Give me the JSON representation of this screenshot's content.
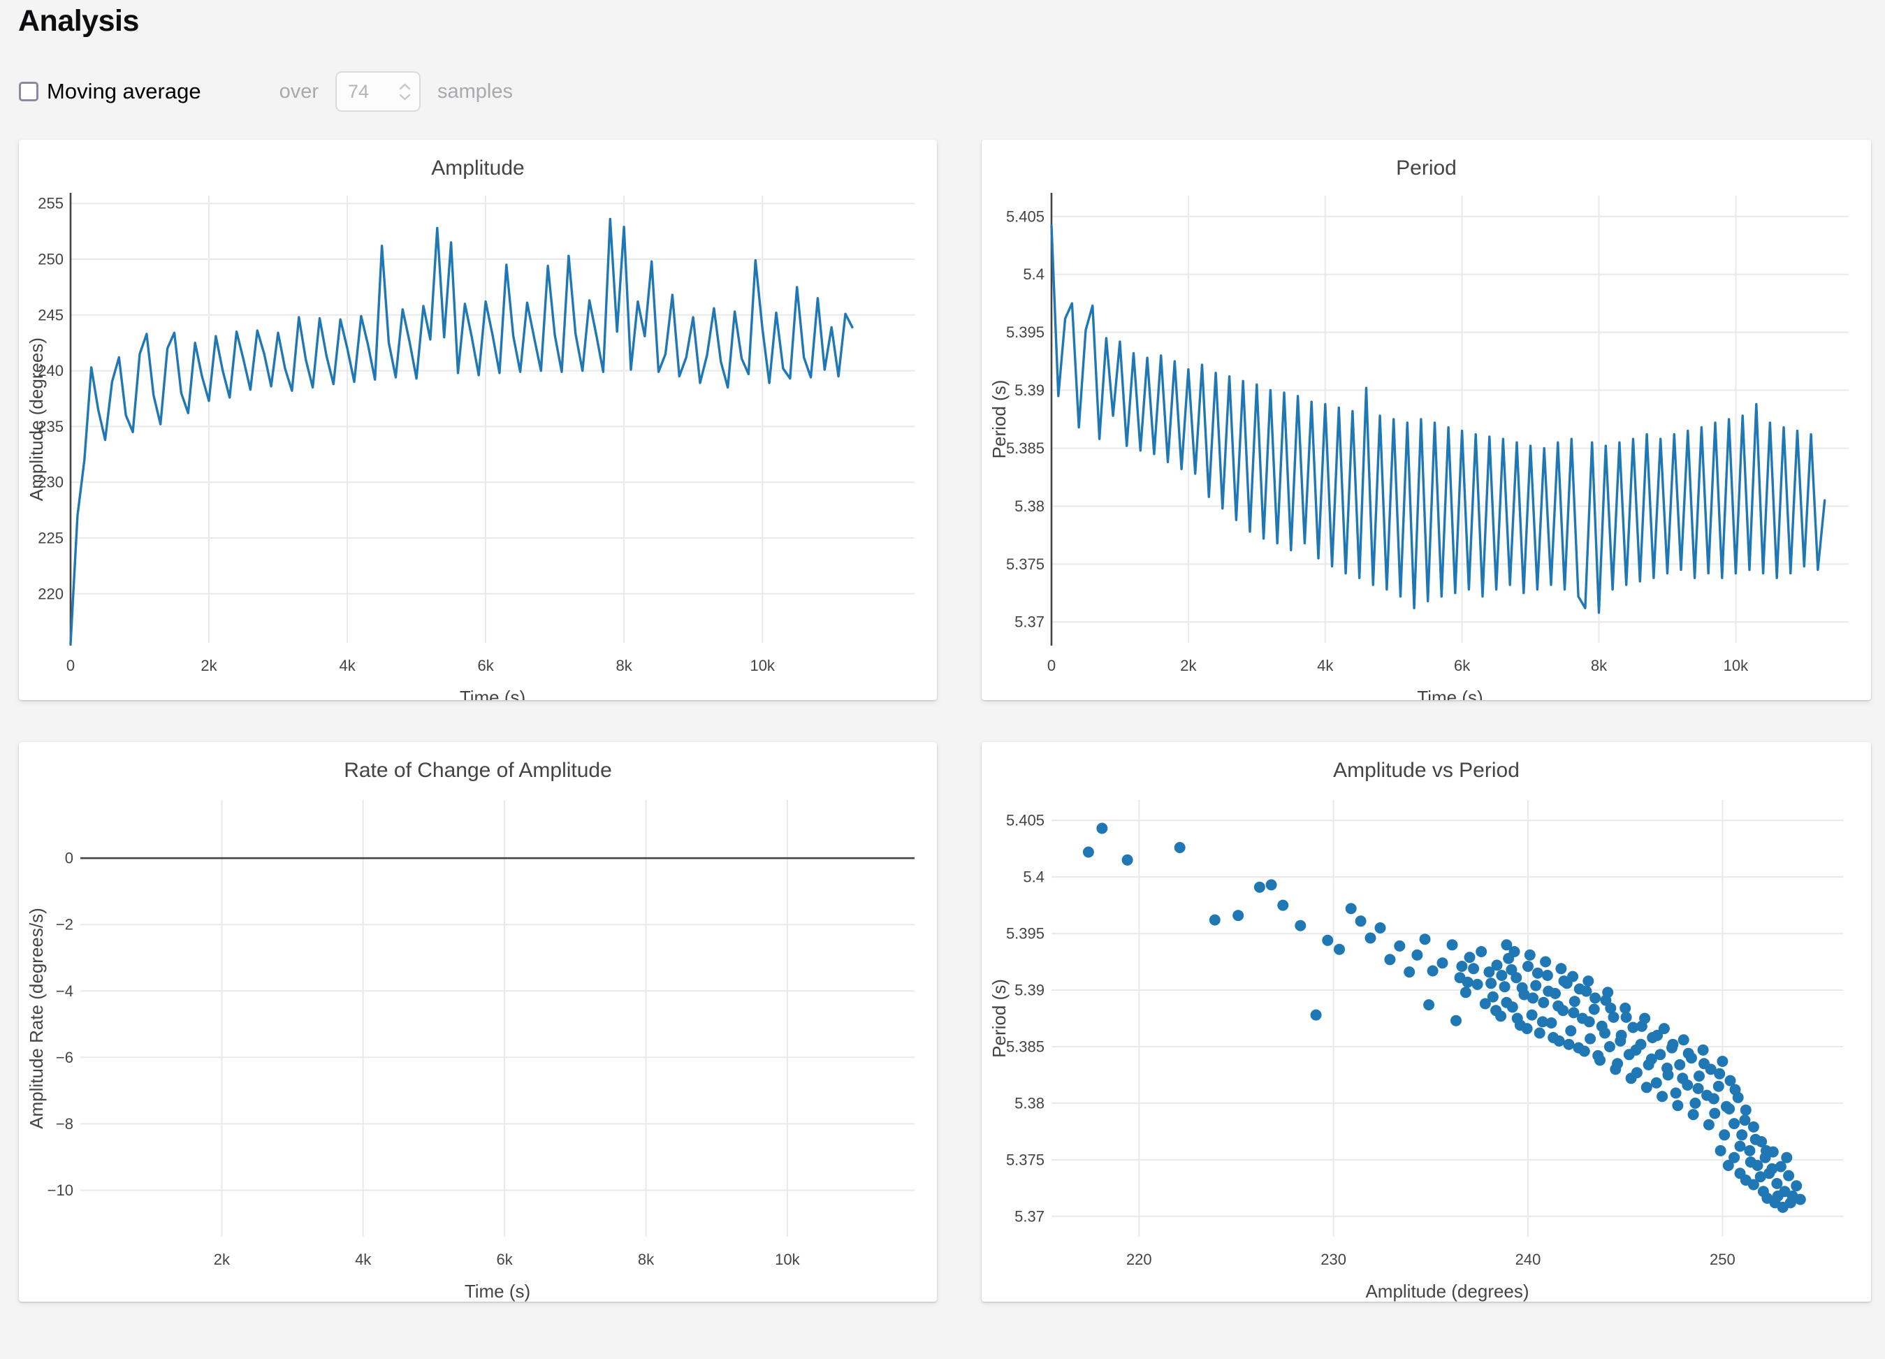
{
  "page": {
    "title": "Analysis"
  },
  "controls": {
    "moving_average_label": "Moving average",
    "checkbox_checked": false,
    "over_label": "over",
    "samples_value": "74",
    "samples_label": "samples",
    "disabled_text_color": "#a8a8ad"
  },
  "accent_color": "#1f77b4",
  "chart_data": [
    {
      "type": "line",
      "title": "Amplitude",
      "xlabel": "Time (s)",
      "ylabel": "Amplitude (degrees)",
      "line_color": "#1f77b4",
      "grid": true,
      "legend": "none",
      "xrange": [
        0,
        12200
      ],
      "yrange": [
        215.6,
        255.7
      ],
      "zeroline": "x",
      "xticks": [
        {
          "v": 0,
          "label": "0"
        },
        {
          "v": 2000,
          "label": "2k"
        },
        {
          "v": 4000,
          "label": "4k"
        },
        {
          "v": 6000,
          "label": "6k"
        },
        {
          "v": 8000,
          "label": "8k"
        },
        {
          "v": 10000,
          "label": "10k"
        }
      ],
      "yticks": [
        {
          "v": 220,
          "label": "220"
        },
        {
          "v": 225,
          "label": "225"
        },
        {
          "v": 230,
          "label": "230"
        },
        {
          "v": 235,
          "label": "235"
        },
        {
          "v": 240,
          "label": "240"
        },
        {
          "v": 245,
          "label": "245"
        },
        {
          "v": 250,
          "label": "250"
        },
        {
          "v": 255,
          "label": "255"
        }
      ],
      "x0": 0,
      "dx": 100,
      "y": [
        215.5,
        227,
        232,
        240.3,
        236.5,
        233.8,
        239,
        241.2,
        236,
        234.5,
        241.5,
        243.3,
        237.8,
        235.2,
        242,
        243.4,
        238,
        236.2,
        242.5,
        239.5,
        237.3,
        243.1,
        240,
        237.6,
        243.5,
        241,
        238.3,
        243.6,
        241.5,
        238.6,
        243.4,
        240.2,
        238.2,
        244.8,
        241,
        238.5,
        244.7,
        241.3,
        238.8,
        244.6,
        242,
        239,
        244.9,
        242.3,
        239.2,
        251.2,
        242.5,
        239.4,
        245.5,
        242.6,
        239.3,
        245.8,
        242.8,
        252.8,
        243,
        251.5,
        239.8,
        246,
        243,
        239.6,
        246.2,
        243.2,
        239.8,
        249.5,
        243.1,
        239.9,
        246.1,
        243,
        240,
        249.4,
        243.2,
        239.9,
        250.3,
        243.3,
        240,
        246.3,
        243.2,
        239.9,
        253.6,
        243.5,
        252.9,
        240.1,
        246.2,
        243.1,
        249.8,
        239.9,
        241.5,
        246.8,
        239.5,
        241.2,
        244.8,
        238.9,
        241.4,
        245.6,
        240.8,
        238.5,
        245.3,
        241.1,
        239.7,
        249.9,
        243.8,
        238.9,
        245.2,
        240.2,
        239.3,
        247.5,
        241.2,
        239.4,
        246.5,
        240.1,
        243.9,
        239.5,
        245.1,
        243.9
      ]
    },
    {
      "type": "line",
      "title": "Period",
      "xlabel": "Time (s)",
      "ylabel": "Period (s)",
      "line_color": "#1f77b4",
      "grid": true,
      "legend": "none",
      "xrange": [
        0,
        11650
      ],
      "yrange": [
        5.3682,
        5.4068
      ],
      "zeroline": "x",
      "xticks": [
        {
          "v": 0,
          "label": "0"
        },
        {
          "v": 2000,
          "label": "2k"
        },
        {
          "v": 4000,
          "label": "4k"
        },
        {
          "v": 6000,
          "label": "6k"
        },
        {
          "v": 8000,
          "label": "8k"
        },
        {
          "v": 10000,
          "label": "10k"
        }
      ],
      "yticks": [
        {
          "v": 5.37,
          "label": "5.37"
        },
        {
          "v": 5.375,
          "label": "5.375"
        },
        {
          "v": 5.38,
          "label": "5.38"
        },
        {
          "v": 5.385,
          "label": "5.385"
        },
        {
          "v": 5.39,
          "label": "5.39"
        },
        {
          "v": 5.395,
          "label": "5.395"
        },
        {
          "v": 5.4,
          "label": "5.4"
        },
        {
          "v": 5.405,
          "label": "5.405"
        }
      ],
      "x0": 0,
      "dx": 100,
      "y": [
        5.4042,
        5.3895,
        5.3962,
        5.3975,
        5.3868,
        5.3952,
        5.3973,
        5.3858,
        5.3945,
        5.3878,
        5.3942,
        5.3852,
        5.3932,
        5.3848,
        5.3928,
        5.3845,
        5.393,
        5.3838,
        5.3925,
        5.3832,
        5.3918,
        5.3828,
        5.3922,
        5.3808,
        5.3915,
        5.3798,
        5.3912,
        5.3788,
        5.3908,
        5.3778,
        5.3905,
        5.3772,
        5.39,
        5.3768,
        5.3898,
        5.3762,
        5.3895,
        5.3768,
        5.389,
        5.3755,
        5.3888,
        5.3748,
        5.3885,
        5.3742,
        5.3882,
        5.3738,
        5.3902,
        5.3732,
        5.3878,
        5.3728,
        5.3875,
        5.3722,
        5.3872,
        5.3712,
        5.3875,
        5.3718,
        5.3872,
        5.3722,
        5.3868,
        5.3725,
        5.3865,
        5.3728,
        5.3862,
        5.3722,
        5.386,
        5.3728,
        5.3858,
        5.3732,
        5.3855,
        5.3725,
        5.3852,
        5.3728,
        5.385,
        5.3732,
        5.3855,
        5.3728,
        5.3858,
        5.3722,
        5.3712,
        5.3855,
        5.3708,
        5.3852,
        5.3728,
        5.3855,
        5.3732,
        5.3858,
        5.3735,
        5.3862,
        5.3738,
        5.3858,
        5.3742,
        5.3862,
        5.3745,
        5.3865,
        5.3738,
        5.3868,
        5.3742,
        5.3872,
        5.3738,
        5.3875,
        5.3742,
        5.3878,
        5.3745,
        5.3888,
        5.3742,
        5.3872,
        5.3738,
        5.3868,
        5.3742,
        5.3865,
        5.3748,
        5.3862,
        5.3745,
        5.3805
      ]
    },
    {
      "type": "line",
      "title": "Rate of Change of Amplitude",
      "xlabel": "Time (s)",
      "ylabel": "Amplitude Rate (degrees/s)",
      "line_color": "#1f77b4",
      "grid": true,
      "legend": "none",
      "has_data": false,
      "xrange": [
        0,
        11800
      ],
      "yrange": [
        -11.4,
        1.75
      ],
      "zeroline": "y",
      "xticks": [
        {
          "v": 2000,
          "label": "2k"
        },
        {
          "v": 4000,
          "label": "4k"
        },
        {
          "v": 6000,
          "label": "6k"
        },
        {
          "v": 8000,
          "label": "8k"
        },
        {
          "v": 10000,
          "label": "10k"
        }
      ],
      "yticks": [
        {
          "v": 0,
          "label": "0"
        },
        {
          "v": -2,
          "label": "−2"
        },
        {
          "v": -4,
          "label": "−4"
        },
        {
          "v": -6,
          "label": "−6"
        },
        {
          "v": -8,
          "label": "−8"
        },
        {
          "v": -10,
          "label": "−10"
        }
      ],
      "x0": 0,
      "dx": 100,
      "y": []
    },
    {
      "type": "scatter",
      "title": "Amplitude vs Period",
      "xlabel": "Amplitude (degrees)",
      "ylabel": "Period (s)",
      "marker_color": "#1f77b4",
      "grid": true,
      "legend": "none",
      "xrange": [
        215.5,
        256.2
      ],
      "yrange": [
        5.3682,
        5.4068
      ],
      "zeroline": null,
      "xticks": [
        {
          "v": 220,
          "label": "220"
        },
        {
          "v": 230,
          "label": "230"
        },
        {
          "v": 240,
          "label": "240"
        },
        {
          "v": 250,
          "label": "250"
        }
      ],
      "yticks": [
        {
          "v": 5.37,
          "label": "5.37"
        },
        {
          "v": 5.375,
          "label": "5.375"
        },
        {
          "v": 5.38,
          "label": "5.38"
        },
        {
          "v": 5.385,
          "label": "5.385"
        },
        {
          "v": 5.39,
          "label": "5.39"
        },
        {
          "v": 5.395,
          "label": "5.395"
        },
        {
          "v": 5.4,
          "label": "5.4"
        },
        {
          "v": 5.405,
          "label": "5.405"
        }
      ],
      "points": [
        [
          217.4,
          5.4022
        ],
        [
          218.1,
          5.4043
        ],
        [
          219.4,
          5.4015
        ],
        [
          222.1,
          5.4026
        ],
        [
          223.9,
          5.3962
        ],
        [
          225.1,
          5.3966
        ],
        [
          226.2,
          5.3991
        ],
        [
          226.8,
          5.3993
        ],
        [
          227.4,
          5.3975
        ],
        [
          228.3,
          5.3957
        ],
        [
          229.1,
          5.3878
        ],
        [
          229.7,
          5.3944
        ],
        [
          230.3,
          5.3936
        ],
        [
          230.9,
          5.3972
        ],
        [
          231.4,
          5.3961
        ],
        [
          231.9,
          5.3946
        ],
        [
          232.4,
          5.3955
        ],
        [
          232.9,
          5.3927
        ],
        [
          233.4,
          5.3939
        ],
        [
          233.9,
          5.3916
        ],
        [
          234.3,
          5.3931
        ],
        [
          234.7,
          5.3945
        ],
        [
          235.1,
          5.3917
        ],
        [
          235.6,
          5.3924
        ],
        [
          236.1,
          5.394
        ],
        [
          236.5,
          5.3911
        ],
        [
          236.9,
          5.3907
        ],
        [
          237.2,
          5.3919
        ],
        [
          234.9,
          5.3887
        ],
        [
          236.3,
          5.3873
        ],
        [
          236.6,
          5.3921
        ],
        [
          236.8,
          5.3898
        ],
        [
          237.0,
          5.3929
        ],
        [
          237.4,
          5.3905
        ],
        [
          237.6,
          5.3934
        ],
        [
          237.8,
          5.3888
        ],
        [
          238.0,
          5.3916
        ],
        [
          238.2,
          5.3894
        ],
        [
          238.4,
          5.3922
        ],
        [
          238.6,
          5.3877
        ],
        [
          238.8,
          5.3903
        ],
        [
          239.0,
          5.3928
        ],
        [
          239.2,
          5.3885
        ],
        [
          239.4,
          5.3911
        ],
        [
          239.6,
          5.3869
        ],
        [
          239.8,
          5.3896
        ],
        [
          240.0,
          5.3921
        ],
        [
          240.2,
          5.3878
        ],
        [
          240.4,
          5.3904
        ],
        [
          240.6,
          5.3862
        ],
        [
          240.8,
          5.3889
        ],
        [
          241.0,
          5.3913
        ],
        [
          241.2,
          5.3871
        ],
        [
          241.4,
          5.3897
        ],
        [
          241.6,
          5.3855
        ],
        [
          241.8,
          5.3882
        ],
        [
          242.0,
          5.3906
        ],
        [
          242.2,
          5.3864
        ],
        [
          242.4,
          5.389
        ],
        [
          242.6,
          5.3849
        ],
        [
          242.8,
          5.3875
        ],
        [
          243.0,
          5.3899
        ],
        [
          243.2,
          5.3857
        ],
        [
          243.4,
          5.3883
        ],
        [
          243.6,
          5.3842
        ],
        [
          243.8,
          5.3868
        ],
        [
          244.0,
          5.3891
        ],
        [
          244.2,
          5.385
        ],
        [
          244.4,
          5.3876
        ],
        [
          244.6,
          5.3835
        ],
        [
          244.8,
          5.386
        ],
        [
          245.0,
          5.3884
        ],
        [
          245.2,
          5.3843
        ],
        [
          245.4,
          5.3867
        ],
        [
          245.6,
          5.3827
        ],
        [
          245.8,
          5.3852
        ],
        [
          246.0,
          5.3875
        ],
        [
          246.2,
          5.3834
        ],
        [
          246.4,
          5.3858
        ],
        [
          246.6,
          5.3818
        ],
        [
          246.8,
          5.3843
        ],
        [
          247.0,
          5.3866
        ],
        [
          247.2,
          5.3825
        ],
        [
          247.4,
          5.3849
        ],
        [
          247.6,
          5.3809
        ],
        [
          247.8,
          5.3834
        ],
        [
          248.0,
          5.3856
        ],
        [
          248.2,
          5.3816
        ],
        [
          248.4,
          5.384
        ],
        [
          248.6,
          5.38
        ],
        [
          248.8,
          5.3824
        ],
        [
          249.0,
          5.3847
        ],
        [
          249.2,
          5.3807
        ],
        [
          249.4,
          5.383
        ],
        [
          249.6,
          5.3791
        ],
        [
          249.8,
          5.3815
        ],
        [
          250.0,
          5.3837
        ],
        [
          250.2,
          5.3797
        ],
        [
          250.4,
          5.382
        ],
        [
          250.6,
          5.3782
        ],
        [
          250.8,
          5.3805
        ],
        [
          251.0,
          5.3772
        ],
        [
          251.2,
          5.3794
        ],
        [
          251.4,
          5.3758
        ],
        [
          251.6,
          5.3779
        ],
        [
          251.8,
          5.3745
        ],
        [
          252.0,
          5.3766
        ],
        [
          252.2,
          5.3752
        ],
        [
          252.4,
          5.3738
        ],
        [
          252.6,
          5.3757
        ],
        [
          252.8,
          5.3729
        ],
        [
          253.0,
          5.3744
        ],
        [
          253.2,
          5.3722
        ],
        [
          253.4,
          5.3736
        ],
        [
          253.6,
          5.3718
        ],
        [
          253.8,
          5.3727
        ],
        [
          254.0,
          5.3715
        ],
        [
          238.1,
          5.3906
        ],
        [
          238.35,
          5.3882
        ],
        [
          238.65,
          5.3913
        ],
        [
          238.9,
          5.3889
        ],
        [
          239.15,
          5.3918
        ],
        [
          239.45,
          5.3875
        ],
        [
          239.7,
          5.3902
        ],
        [
          239.95,
          5.3866
        ],
        [
          240.25,
          5.3893
        ],
        [
          240.5,
          5.3915
        ],
        [
          240.75,
          5.3872
        ],
        [
          241.05,
          5.3899
        ],
        [
          241.3,
          5.3858
        ],
        [
          241.55,
          5.3886
        ],
        [
          241.85,
          5.3908
        ],
        [
          242.1,
          5.3852
        ],
        [
          242.35,
          5.388
        ],
        [
          242.65,
          5.3901
        ],
        [
          242.9,
          5.3846
        ],
        [
          243.15,
          5.3872
        ],
        [
          243.45,
          5.3893
        ],
        [
          243.7,
          5.3838
        ],
        [
          243.95,
          5.3862
        ],
        [
          244.25,
          5.3884
        ],
        [
          244.5,
          5.383
        ],
        [
          244.75,
          5.3855
        ],
        [
          245.05,
          5.3876
        ],
        [
          245.3,
          5.3822
        ],
        [
          245.55,
          5.3847
        ],
        [
          245.85,
          5.3868
        ],
        [
          246.1,
          5.3814
        ],
        [
          246.35,
          5.3839
        ],
        [
          246.65,
          5.386
        ],
        [
          246.9,
          5.3806
        ],
        [
          247.15,
          5.3831
        ],
        [
          247.45,
          5.3852
        ],
        [
          247.7,
          5.3798
        ],
        [
          247.95,
          5.3822
        ],
        [
          248.25,
          5.3844
        ],
        [
          248.5,
          5.379
        ],
        [
          248.75,
          5.3813
        ],
        [
          249.05,
          5.3835
        ],
        [
          249.3,
          5.3781
        ],
        [
          249.55,
          5.3804
        ],
        [
          249.85,
          5.3826
        ],
        [
          250.1,
          5.3772
        ],
        [
          250.35,
          5.3795
        ],
        [
          250.65,
          5.3812
        ],
        [
          250.9,
          5.3762
        ],
        [
          251.15,
          5.3785
        ],
        [
          251.45,
          5.3748
        ],
        [
          251.7,
          5.3768
        ],
        [
          251.95,
          5.3735
        ],
        [
          252.25,
          5.3758
        ],
        [
          252.55,
          5.3742
        ],
        [
          252.85,
          5.3718
        ],
        [
          250.3,
          5.3745
        ],
        [
          250.9,
          5.3738
        ],
        [
          251.6,
          5.3728
        ],
        [
          252.1,
          5.3722
        ],
        [
          252.7,
          5.3712
        ],
        [
          253.1,
          5.3708
        ],
        [
          253.5,
          5.3712
        ],
        [
          252.3,
          5.3716
        ],
        [
          251.2,
          5.3732
        ],
        [
          250.6,
          5.3752
        ],
        [
          249.9,
          5.3758
        ],
        [
          253.3,
          5.3752
        ],
        [
          239.3,
          5.3934
        ],
        [
          240.1,
          5.3931
        ],
        [
          240.9,
          5.3925
        ],
        [
          241.7,
          5.3919
        ],
        [
          238.9,
          5.394
        ],
        [
          242.3,
          5.3912
        ],
        [
          243.1,
          5.3908
        ],
        [
          244.1,
          5.3898
        ]
      ]
    }
  ]
}
